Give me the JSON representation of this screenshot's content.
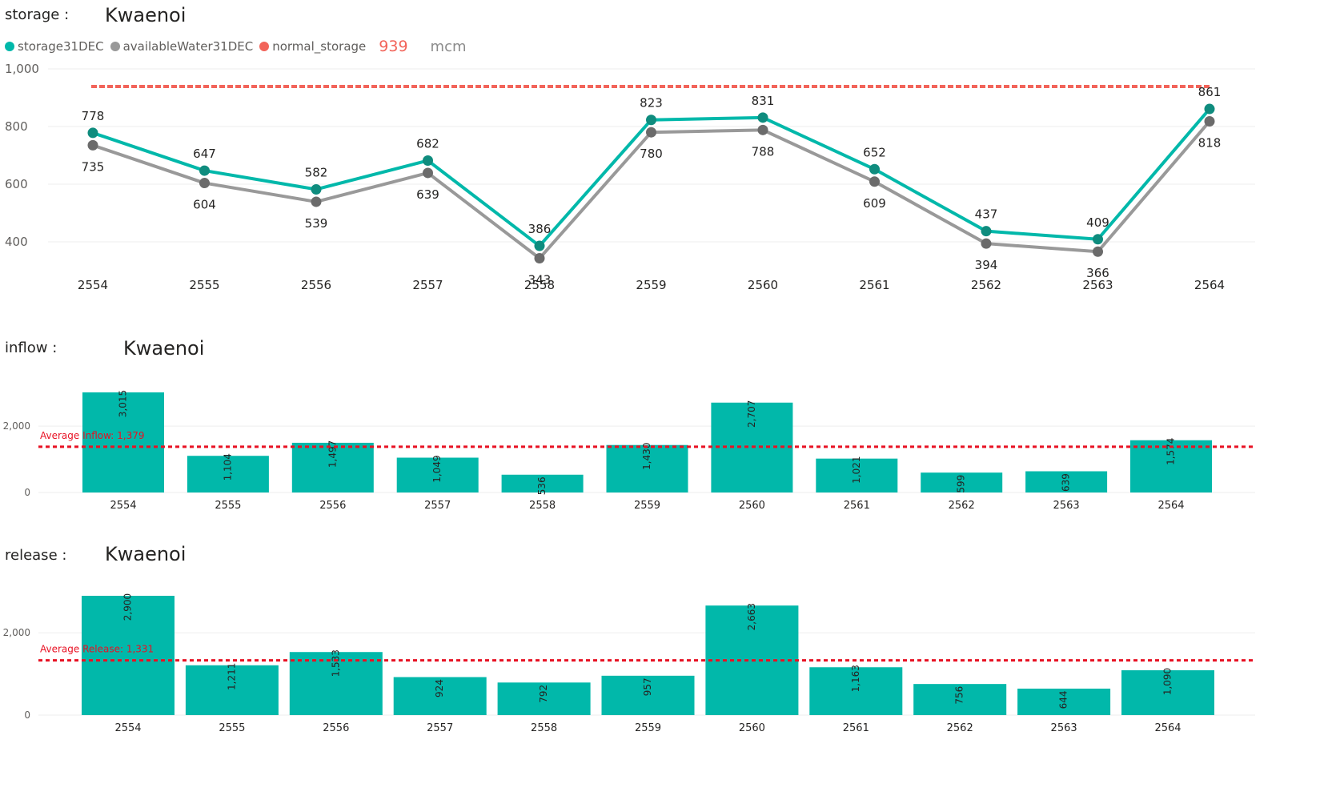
{
  "storage": {
    "label": "storage :",
    "dam": "Kwaenoi",
    "normal_storage_value": "939",
    "unit": "mcm",
    "legend": [
      {
        "name": "storage31DEC",
        "color": "#01B8AA"
      },
      {
        "name": "availableWater31DEC",
        "color": "#999999"
      },
      {
        "name": "normal_storage",
        "color": "#F2645A"
      }
    ]
  },
  "inflow": {
    "label": "inflow :",
    "dam": "Kwaenoi",
    "avg_label": "Average Inflow: 1,379"
  },
  "release": {
    "label": "release :",
    "dam": "Kwaenoi",
    "avg_label": "Average Release: 1,331"
  },
  "chart_data": [
    {
      "type": "line",
      "categories": [
        "2554",
        "2555",
        "2556",
        "2557",
        "2558",
        "2559",
        "2560",
        "2561",
        "2562",
        "2563",
        "2564"
      ],
      "y_ticks": [
        "1,000",
        "800",
        "600",
        "400"
      ],
      "ylim": [
        300,
        1000
      ],
      "grid": true,
      "series": [
        {
          "name": "storage31DEC",
          "color": "#01B8AA",
          "values": [
            778,
            647,
            582,
            682,
            386,
            823,
            831,
            652,
            437,
            409,
            861
          ]
        },
        {
          "name": "availableWater31DEC",
          "color": "#999999",
          "values": [
            735,
            604,
            539,
            639,
            343,
            780,
            788,
            609,
            394,
            366,
            818
          ]
        },
        {
          "name": "normal_storage",
          "color": "#F2645A",
          "values": [
            939,
            939,
            939,
            939,
            939,
            939,
            939,
            939,
            939,
            939,
            939
          ]
        }
      ]
    },
    {
      "type": "bar",
      "categories": [
        "2554",
        "2555",
        "2556",
        "2557",
        "2558",
        "2559",
        "2560",
        "2561",
        "2562",
        "2563",
        "2564"
      ],
      "values": [
        3015,
        1104,
        1497,
        1049,
        536,
        1430,
        2707,
        1021,
        599,
        639,
        1574
      ],
      "value_labels": [
        "3,015",
        "1,104",
        "1,497",
        "1,049",
        "536",
        "1,430",
        "2,707",
        "1,021",
        "599",
        "639",
        "1,574"
      ],
      "y_ticks": [
        "2,000",
        "0"
      ],
      "ylim": [
        0,
        3050
      ],
      "average": 1379,
      "color": "#01B8AA",
      "grid": true
    },
    {
      "type": "bar",
      "categories": [
        "2554",
        "2555",
        "2556",
        "2557",
        "2558",
        "2559",
        "2560",
        "2561",
        "2562",
        "2563",
        "2564"
      ],
      "values": [
        2900,
        1211,
        1533,
        924,
        792,
        957,
        2663,
        1163,
        756,
        644,
        1090
      ],
      "value_labels": [
        "2,900",
        "1,211",
        "1,533",
        "924",
        "792",
        "957",
        "2,663",
        "1,163",
        "756",
        "644",
        "1,090"
      ],
      "y_ticks": [
        "2,000",
        "0"
      ],
      "ylim": [
        0,
        2950
      ],
      "average": 1331,
      "color": "#01B8AA",
      "grid": true
    }
  ]
}
